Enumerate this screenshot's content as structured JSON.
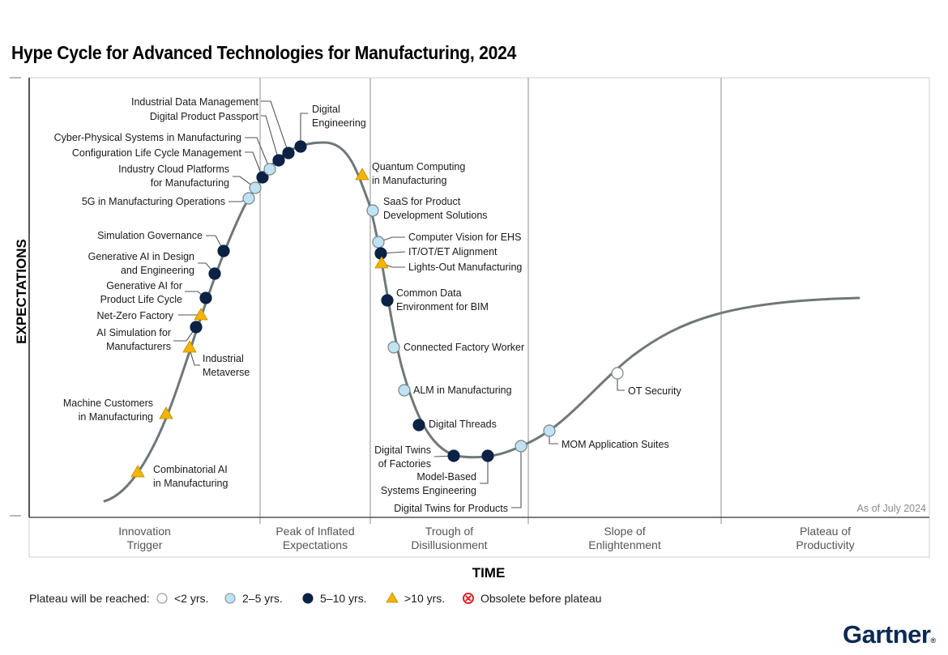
{
  "title": "Hype Cycle for Advanced Technologies for Manufacturing, 2024",
  "brand": "Gartner",
  "colors": {
    "curve": "#6f7878",
    "lt2": "#ffffff",
    "y2to5": "#bfe3f2",
    "y5to10": "#0b2244",
    "gt10": "#f5b400",
    "obsolete": "#d9262c",
    "marker_stroke": "#7a8585",
    "brand": "#0b2a52"
  },
  "chart_data": {
    "type": "scatter",
    "title": "Hype Cycle for Advanced Technologies for Manufacturing, 2024",
    "xlabel": "TIME",
    "ylabel": "EXPECTATIONS",
    "as_of": "As of July 2024",
    "grid": false,
    "legend_position": "bottom-left",
    "phases": [
      {
        "name": "Innovation Trigger",
        "lines": [
          "Innovation",
          "Trigger"
        ]
      },
      {
        "name": "Peak of Inflated Expectations",
        "lines": [
          "Peak of Inflated",
          "Expectations"
        ]
      },
      {
        "name": "Trough of Disillusionment",
        "lines": [
          "Trough of",
          "Disillusionment"
        ]
      },
      {
        "name": "Slope of Enlightenment",
        "lines": [
          "Slope of",
          "Enlightenment"
        ]
      },
      {
        "name": "Plateau of Productivity",
        "lines": [
          "Plateau of",
          "Productivity"
        ]
      }
    ],
    "legend": {
      "label": "Plateau will be reached:",
      "items": [
        {
          "key": "lt2",
          "label": "<2 yrs."
        },
        {
          "key": "y2to5",
          "label": "2–5 yrs."
        },
        {
          "key": "y5to10",
          "label": "5–10 yrs."
        },
        {
          "key": "gt10",
          "label": ">10 yrs."
        },
        {
          "key": "obsolete",
          "label": "Obsolete before plateau"
        }
      ]
    },
    "points": [
      {
        "name": "Combinatorial AI in Manufacturing",
        "lines": [
          "Combinatorial AI",
          "in Manufacturing"
        ],
        "phase": "Innovation Trigger",
        "plateau": "gt10"
      },
      {
        "name": "Machine Customers in Manufacturing",
        "lines": [
          "Machine Customers",
          "in Manufacturing"
        ],
        "phase": "Innovation Trigger",
        "plateau": "gt10"
      },
      {
        "name": "Industrial Metaverse",
        "lines": [
          "Industrial",
          "Metaverse"
        ],
        "phase": "Innovation Trigger",
        "plateau": "gt10"
      },
      {
        "name": "AI Simulation for Manufacturers",
        "lines": [
          "AI Simulation for",
          "Manufacturers"
        ],
        "phase": "Innovation Trigger",
        "plateau": "y5to10"
      },
      {
        "name": "Net-Zero Factory",
        "lines": [
          "Net-Zero Factory"
        ],
        "phase": "Innovation Trigger",
        "plateau": "gt10"
      },
      {
        "name": "Generative AI for Product Life Cycle",
        "lines": [
          "Generative AI for",
          "Product Life Cycle"
        ],
        "phase": "Innovation Trigger",
        "plateau": "y5to10"
      },
      {
        "name": "Generative AI in Design and Engineering",
        "lines": [
          "Generative AI in Design",
          "and Engineering"
        ],
        "phase": "Innovation Trigger",
        "plateau": "y5to10"
      },
      {
        "name": "Simulation Governance",
        "lines": [
          "Simulation Governance"
        ],
        "phase": "Innovation Trigger",
        "plateau": "y5to10"
      },
      {
        "name": "5G in Manufacturing Operations",
        "lines": [
          "5G in Manufacturing Operations"
        ],
        "phase": "Innovation Trigger",
        "plateau": "y2to5"
      },
      {
        "name": "Industry Cloud Platforms for Manufacturing",
        "lines": [
          "Industry Cloud Platforms",
          "for Manufacturing"
        ],
        "phase": "Innovation Trigger",
        "plateau": "y2to5"
      },
      {
        "name": "Configuration Life Cycle Management",
        "lines": [
          "Configuration Life Cycle Management"
        ],
        "phase": "Peak of Inflated Expectations",
        "plateau": "y5to10"
      },
      {
        "name": "Cyber-Physical Systems in Manufacturing",
        "lines": [
          "Cyber-Physical Systems in Manufacturing"
        ],
        "phase": "Peak of Inflated Expectations",
        "plateau": "y2to5"
      },
      {
        "name": "Digital Product Passport",
        "lines": [
          "Digital Product Passport"
        ],
        "phase": "Peak of Inflated Expectations",
        "plateau": "y5to10"
      },
      {
        "name": "Industrial Data Management",
        "lines": [
          "Industrial Data Management"
        ],
        "phase": "Peak of Inflated Expectations",
        "plateau": "y5to10"
      },
      {
        "name": "Digital Engineering",
        "lines": [
          "Digital",
          "Engineering"
        ],
        "phase": "Peak of Inflated Expectations",
        "plateau": "y5to10"
      },
      {
        "name": "Quantum Computing in Manufacturing",
        "lines": [
          "Quantum Computing",
          "in Manufacturing"
        ],
        "phase": "Peak of Inflated Expectations",
        "plateau": "gt10"
      },
      {
        "name": "SaaS for Product Development Solutions",
        "lines": [
          "SaaS for Product",
          "Development Solutions"
        ],
        "phase": "Trough of Disillusionment",
        "plateau": "y2to5"
      },
      {
        "name": "Computer Vision for EHS",
        "lines": [
          "Computer Vision for EHS"
        ],
        "phase": "Trough of Disillusionment",
        "plateau": "y2to5"
      },
      {
        "name": "IT/OT/ET Alignment",
        "lines": [
          "IT/OT/ET Alignment"
        ],
        "phase": "Trough of Disillusionment",
        "plateau": "y5to10"
      },
      {
        "name": "Lights-Out Manufacturing",
        "lines": [
          "Lights-Out Manufacturing"
        ],
        "phase": "Trough of Disillusionment",
        "plateau": "gt10"
      },
      {
        "name": "Common Data Environment for BIM",
        "lines": [
          "Common Data",
          "Environment for BIM"
        ],
        "phase": "Trough of Disillusionment",
        "plateau": "y5to10"
      },
      {
        "name": "Connected Factory Worker",
        "lines": [
          "Connected Factory Worker"
        ],
        "phase": "Trough of Disillusionment",
        "plateau": "y2to5"
      },
      {
        "name": "ALM in Manufacturing",
        "lines": [
          "ALM in Manufacturing"
        ],
        "phase": "Trough of Disillusionment",
        "plateau": "y2to5"
      },
      {
        "name": "Digital Threads",
        "lines": [
          "Digital Threads"
        ],
        "phase": "Trough of Disillusionment",
        "plateau": "y5to10"
      },
      {
        "name": "Digital Twins of Factories",
        "lines": [
          "Digital Twins",
          "of Factories"
        ],
        "phase": "Trough of Disillusionment",
        "plateau": "y5to10"
      },
      {
        "name": "Model-Based Systems Engineering",
        "lines": [
          "Model-Based",
          "Systems Engineering"
        ],
        "phase": "Trough of Disillusionment",
        "plateau": "y5to10"
      },
      {
        "name": "Digital Twins for Products",
        "lines": [
          "Digital Twins for Products"
        ],
        "phase": "Trough of Disillusionment",
        "plateau": "y2to5"
      },
      {
        "name": "MOM Application Suites",
        "lines": [
          "MOM Application Suites"
        ],
        "phase": "Slope of Enlightenment",
        "plateau": "y2to5"
      },
      {
        "name": "OT Security",
        "lines": [
          "OT Security"
        ],
        "phase": "Slope of Enlightenment",
        "plateau": "lt2"
      }
    ]
  }
}
